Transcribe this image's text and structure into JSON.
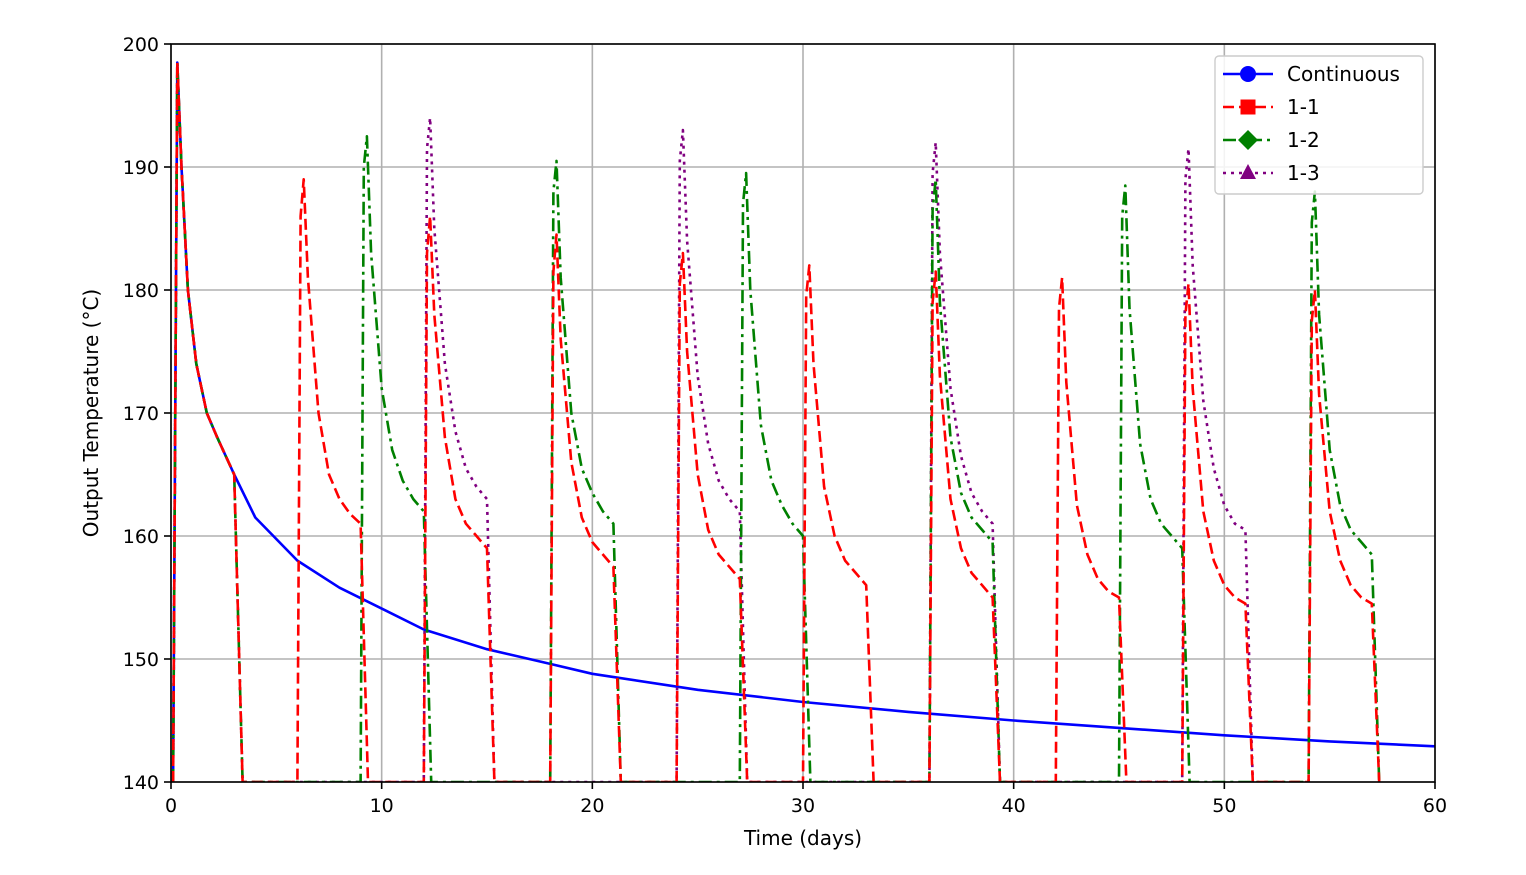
{
  "chart_data": {
    "type": "line",
    "title": "",
    "xlabel": "Time (days)",
    "ylabel": "Output Temperature (°C)",
    "xlim": [
      0,
      60
    ],
    "ylim": [
      140,
      200
    ],
    "xticks": [
      0,
      10,
      20,
      30,
      40,
      50,
      60
    ],
    "yticks": [
      140,
      150,
      160,
      170,
      180,
      190,
      200
    ],
    "grid": true,
    "legend_position": "top-right",
    "series": [
      {
        "name": "Continuous",
        "color": "#0000ff",
        "linestyle": "solid",
        "marker": "circle",
        "x": [
          0.1,
          0.3,
          0.5,
          0.8,
          1.2,
          1.7,
          2.2,
          3.0,
          4.0,
          6.0,
          8.0,
          10.0,
          12.0,
          15.0,
          18.0,
          20.0,
          25.0,
          30.0,
          35.0,
          40.0,
          45.0,
          50.0,
          55.0,
          60.0
        ],
        "y": [
          140,
          198.5,
          190,
          180,
          174,
          170,
          168,
          165,
          161.5,
          158,
          155.8,
          154.1,
          152.4,
          150.8,
          149.6,
          148.8,
          147.5,
          146.5,
          145.7,
          145.0,
          144.4,
          143.8,
          143.3,
          142.9
        ]
      },
      {
        "name": "1-1",
        "color": "#ff0000",
        "linestyle": "dashed",
        "marker": "square",
        "x": [
          0.1,
          0.3,
          0.5,
          0.8,
          1.2,
          1.7,
          2.2,
          3.0,
          3.4,
          6.0,
          6.15,
          6.3,
          6.5,
          7.0,
          7.5,
          8.0,
          8.5,
          9.0,
          9.35,
          12.0,
          12.15,
          12.3,
          12.5,
          13.0,
          13.5,
          14.0,
          14.5,
          15.0,
          15.35,
          18.0,
          18.15,
          18.3,
          18.5,
          19.0,
          19.5,
          20.0,
          20.5,
          21.0,
          21.35,
          24.0,
          24.15,
          24.3,
          24.5,
          25.0,
          25.5,
          26.0,
          26.5,
          27.0,
          27.35,
          30.0,
          30.15,
          30.3,
          30.5,
          31.0,
          31.5,
          32.0,
          32.5,
          33.0,
          33.35,
          36.0,
          36.15,
          36.3,
          36.5,
          37.0,
          37.5,
          38.0,
          38.5,
          39.0,
          39.35,
          42.0,
          42.15,
          42.3,
          42.5,
          43.0,
          43.5,
          44.0,
          44.5,
          45.0,
          45.35,
          48.0,
          48.15,
          48.3,
          48.5,
          49.0,
          49.5,
          50.0,
          50.5,
          51.0,
          51.35,
          54.0,
          54.15,
          54.3,
          54.5,
          55.0,
          55.5,
          56.0,
          56.5,
          57.0,
          57.35
        ],
        "y": [
          140,
          198.5,
          190,
          180,
          174,
          170,
          168,
          165,
          140,
          140,
          186,
          189,
          181,
          170,
          165,
          163,
          161.8,
          161,
          140,
          140,
          183,
          186,
          178,
          168,
          163,
          161,
          160,
          159,
          140,
          140,
          181.5,
          184.5,
          176,
          166,
          161.5,
          159.5,
          158.5,
          157.5,
          140,
          140,
          180.5,
          183,
          175,
          165,
          160.5,
          158.5,
          157.5,
          156.5,
          140,
          140,
          179.5,
          182,
          174,
          164,
          160,
          158,
          157,
          156,
          140,
          140,
          179,
          181.5,
          173,
          163,
          159,
          157,
          156,
          155,
          140,
          140,
          178.5,
          181,
          172.5,
          162.5,
          158.5,
          156.5,
          155.5,
          155,
          140,
          140,
          178,
          180.5,
          172,
          162,
          158,
          156,
          155,
          154.5,
          140,
          140,
          177.5,
          180,
          171.5,
          162,
          158,
          156,
          155,
          154.5,
          140
        ]
      },
      {
        "name": "1-2",
        "color": "#008000",
        "linestyle": "dashdot",
        "marker": "diamond",
        "x": [
          0.1,
          0.3,
          0.5,
          0.8,
          1.2,
          1.7,
          2.2,
          3.0,
          3.4,
          9.0,
          9.15,
          9.3,
          9.5,
          10.0,
          10.5,
          11.0,
          11.5,
          12.0,
          12.35,
          18.0,
          18.15,
          18.3,
          18.5,
          19.0,
          19.5,
          20.0,
          20.5,
          21.0,
          21.35,
          27.0,
          27.15,
          27.3,
          27.5,
          28.0,
          28.5,
          29.0,
          29.5,
          30.0,
          30.35,
          36.0,
          36.15,
          36.3,
          36.5,
          37.0,
          37.5,
          38.0,
          38.5,
          39.0,
          39.35,
          45.0,
          45.15,
          45.3,
          45.5,
          46.0,
          46.5,
          47.0,
          47.5,
          48.0,
          48.35,
          54.0,
          54.15,
          54.3,
          54.5,
          55.0,
          55.5,
          56.0,
          56.5,
          57.0,
          57.35
        ],
        "y": [
          140,
          198.5,
          190,
          180,
          174,
          170,
          168,
          165,
          140,
          140,
          190,
          192.5,
          183,
          172,
          167,
          164.5,
          163,
          162,
          140,
          140,
          188,
          190.5,
          181,
          170,
          165.5,
          163.5,
          162,
          161,
          140,
          140,
          187,
          189.5,
          180,
          169,
          164.5,
          162.5,
          161,
          160,
          140,
          140,
          186.5,
          189,
          179,
          168,
          163.5,
          161.5,
          160.5,
          159.5,
          140,
          140,
          186,
          188.5,
          178.5,
          167.5,
          163,
          161,
          160,
          159,
          140,
          140,
          185.5,
          188,
          178,
          167,
          162.5,
          160.5,
          159.5,
          158.5,
          140
        ]
      },
      {
        "name": "1-3",
        "color": "#800080",
        "linestyle": "dotted",
        "marker": "triangle",
        "x": [
          0.1,
          0.3,
          0.5,
          0.8,
          1.2,
          1.7,
          2.2,
          3.0,
          3.4,
          12.0,
          12.15,
          12.3,
          12.5,
          13.0,
          13.5,
          14.0,
          14.5,
          15.0,
          15.35,
          24.0,
          24.15,
          24.3,
          24.5,
          25.0,
          25.5,
          26.0,
          26.5,
          27.0,
          27.35,
          36.0,
          36.15,
          36.3,
          36.5,
          37.0,
          37.5,
          38.0,
          38.5,
          39.0,
          39.35,
          48.0,
          48.15,
          48.3,
          48.5,
          49.0,
          49.5,
          50.0,
          50.5,
          51.0,
          51.35
        ],
        "y": [
          140,
          198.5,
          190,
          180,
          174,
          170,
          168,
          165,
          140,
          140,
          191.5,
          194,
          185,
          174,
          168.5,
          165.5,
          164,
          163,
          140,
          140,
          190.5,
          193,
          184,
          173,
          167.5,
          164.5,
          163,
          162,
          140,
          140,
          189.5,
          192,
          183,
          172,
          166.5,
          163.5,
          162,
          161,
          140,
          140,
          189,
          191.5,
          182,
          171,
          165.5,
          162.5,
          161,
          160.5,
          140
        ]
      }
    ]
  }
}
